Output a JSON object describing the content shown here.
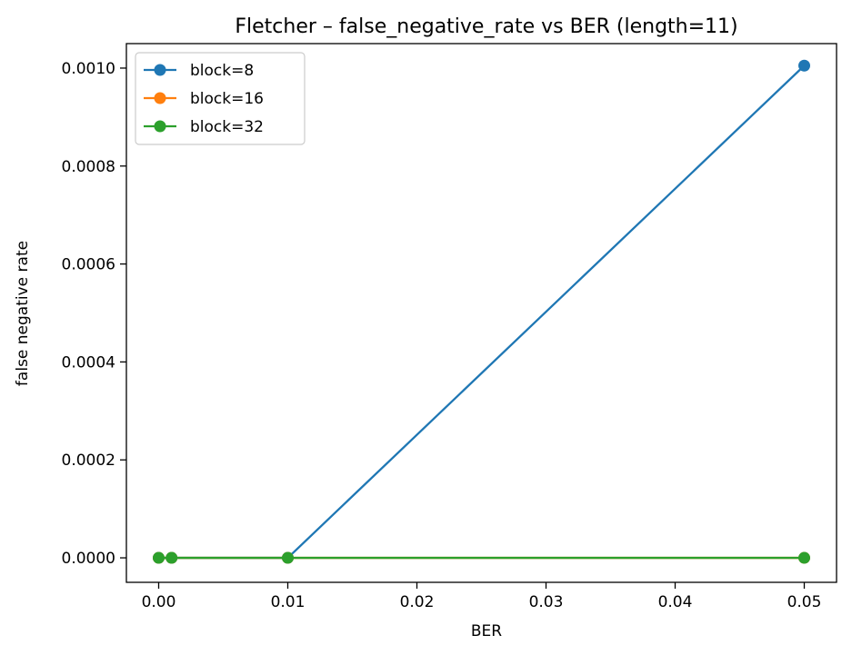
{
  "chart_data": {
    "type": "line",
    "title": "Fletcher – false_negative_rate vs BER (length=11)",
    "xlabel": "BER",
    "ylabel": "false negative rate",
    "x": [
      0.0,
      0.001,
      0.01,
      0.05
    ],
    "xlim": [
      -0.0025,
      0.0525
    ],
    "ylim": [
      -5e-05,
      0.00105
    ],
    "xticks": [
      0.0,
      0.01,
      0.02,
      0.03,
      0.04,
      0.05
    ],
    "xtick_labels": [
      "0.00",
      "0.01",
      "0.02",
      "0.03",
      "0.04",
      "0.05"
    ],
    "yticks": [
      0.0,
      0.0002,
      0.0004,
      0.0006,
      0.0008,
      0.001
    ],
    "ytick_labels": [
      "0.0000",
      "0.0002",
      "0.0004",
      "0.0006",
      "0.0008",
      "0.0010"
    ],
    "grid": false,
    "legend_position": "top-left",
    "series": [
      {
        "name": "block=8",
        "color": "#1f77b4",
        "values": [
          0.0,
          0.0,
          0.0,
          0.001005
        ]
      },
      {
        "name": "block=16",
        "color": "#ff7f0e",
        "values": [
          0.0,
          0.0,
          0.0,
          0.0
        ]
      },
      {
        "name": "block=32",
        "color": "#2ca02c",
        "values": [
          0.0,
          0.0,
          0.0,
          0.0
        ]
      }
    ]
  }
}
